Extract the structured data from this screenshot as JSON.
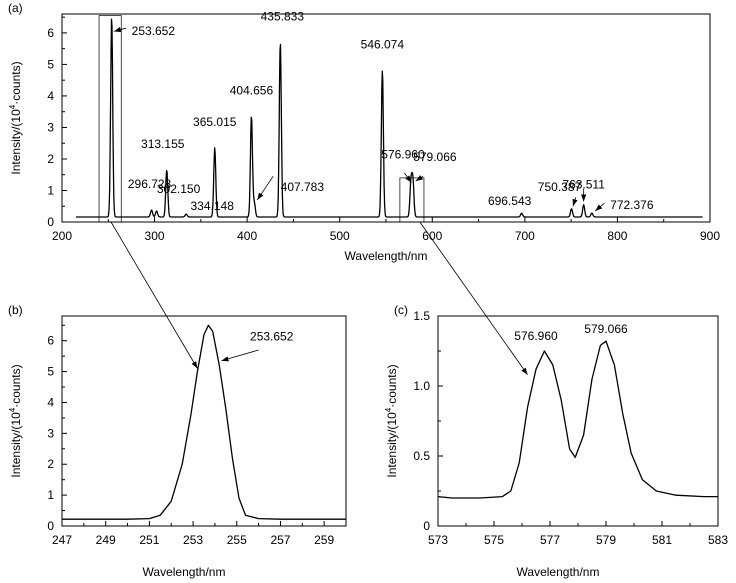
{
  "chart_data": [
    {
      "panel": "(a)",
      "type": "line",
      "xlabel": "Wavelength/nm",
      "ylabel_main": "Intensity/(10",
      "ylabel_sup": "4",
      "ylabel_tail": "·counts)",
      "xlim": [
        200,
        900
      ],
      "ylim": [
        0,
        6.6
      ],
      "xticks": [
        200,
        300,
        400,
        500,
        600,
        700,
        800,
        900
      ],
      "yticks": [
        0,
        1,
        2,
        3,
        4,
        5,
        6
      ],
      "baseline": 0.16,
      "peaks": [
        {
          "x": 253.652,
          "y": 6.5,
          "label": "253.652"
        },
        {
          "x": 296.728,
          "y": 0.38,
          "label": "296.728"
        },
        {
          "x": 302.15,
          "y": 0.35,
          "label": "302.150"
        },
        {
          "x": 313.155,
          "y": 1.65,
          "label": "313.155"
        },
        {
          "x": 334.148,
          "y": 0.25,
          "label": "334.148"
        },
        {
          "x": 365.015,
          "y": 2.35,
          "label": "365.015"
        },
        {
          "x": 404.656,
          "y": 3.35,
          "label": "404.656"
        },
        {
          "x": 407.783,
          "y": 0.6,
          "label": "407.783"
        },
        {
          "x": 435.833,
          "y": 5.7,
          "label": "435.833"
        },
        {
          "x": 546.074,
          "y": 4.8,
          "label": "546.074"
        },
        {
          "x": 576.96,
          "y": 1.25,
          "label": "576.960"
        },
        {
          "x": 579.066,
          "y": 1.3,
          "label": "579.066"
        },
        {
          "x": 696.543,
          "y": 0.28,
          "label": "696.543"
        },
        {
          "x": 750.387,
          "y": 0.42,
          "label": "750.387"
        },
        {
          "x": 763.511,
          "y": 0.55,
          "label": "763.511"
        },
        {
          "x": 772.376,
          "y": 0.28,
          "label": "772.376"
        }
      ]
    },
    {
      "panel": "(b)",
      "type": "line",
      "xlabel": "Wavelength/nm",
      "ylabel_main": "Intensity/(10",
      "ylabel_sup": "4",
      "ylabel_tail": "·counts)",
      "xlim": [
        247,
        260
      ],
      "ylim": [
        0,
        6.8
      ],
      "xticks": [
        247,
        249,
        251,
        253,
        255,
        257,
        259
      ],
      "yticks": [
        0,
        1,
        2,
        3,
        4,
        5,
        6
      ],
      "points": [
        [
          247.0,
          0.22
        ],
        [
          248.0,
          0.22
        ],
        [
          249.0,
          0.22
        ],
        [
          250.0,
          0.22
        ],
        [
          251.0,
          0.24
        ],
        [
          251.5,
          0.35
        ],
        [
          252.0,
          0.8
        ],
        [
          252.5,
          2.0
        ],
        [
          252.9,
          3.6
        ],
        [
          253.2,
          5.0
        ],
        [
          253.5,
          6.2
        ],
        [
          253.7,
          6.5
        ],
        [
          253.9,
          6.3
        ],
        [
          254.2,
          5.2
        ],
        [
          254.5,
          3.8
        ],
        [
          254.8,
          2.2
        ],
        [
          255.1,
          0.9
        ],
        [
          255.4,
          0.35
        ],
        [
          256.0,
          0.24
        ],
        [
          257.0,
          0.22
        ],
        [
          258.0,
          0.22
        ],
        [
          259.0,
          0.22
        ],
        [
          260.0,
          0.22
        ]
      ],
      "annotation": {
        "x": 253.652,
        "y": 6.5,
        "label": "253.652"
      }
    },
    {
      "panel": "(c)",
      "type": "line",
      "xlabel": "Wavelength/nm",
      "ylabel_main": "Intensity/(10",
      "ylabel_sup": "4",
      "ylabel_tail": "·counts)",
      "xlim": [
        573,
        583
      ],
      "ylim": [
        0,
        1.5
      ],
      "xticks": [
        573,
        575,
        577,
        579,
        581,
        583
      ],
      "yticks": [
        0,
        0.5,
        1.0,
        1.5
      ],
      "ytick_labels": [
        "0",
        "0.5",
        "1.0",
        "1.5"
      ],
      "points": [
        [
          573.0,
          0.21
        ],
        [
          573.5,
          0.2
        ],
        [
          574.5,
          0.2
        ],
        [
          575.3,
          0.21
        ],
        [
          575.6,
          0.25
        ],
        [
          575.9,
          0.45
        ],
        [
          576.2,
          0.85
        ],
        [
          576.5,
          1.12
        ],
        [
          576.8,
          1.25
        ],
        [
          577.1,
          1.15
        ],
        [
          577.4,
          0.9
        ],
        [
          577.7,
          0.55
        ],
        [
          577.9,
          0.49
        ],
        [
          578.2,
          0.65
        ],
        [
          578.5,
          1.05
        ],
        [
          578.8,
          1.29
        ],
        [
          579.0,
          1.32
        ],
        [
          579.3,
          1.15
        ],
        [
          579.6,
          0.8
        ],
        [
          579.9,
          0.52
        ],
        [
          580.3,
          0.33
        ],
        [
          580.8,
          0.25
        ],
        [
          581.5,
          0.22
        ],
        [
          582.5,
          0.21
        ],
        [
          583.0,
          0.21
        ]
      ],
      "annotations": [
        {
          "x": 576.96,
          "y": 1.25,
          "label": "576.960"
        },
        {
          "x": 579.066,
          "y": 1.32,
          "label": "579.066"
        }
      ]
    }
  ]
}
